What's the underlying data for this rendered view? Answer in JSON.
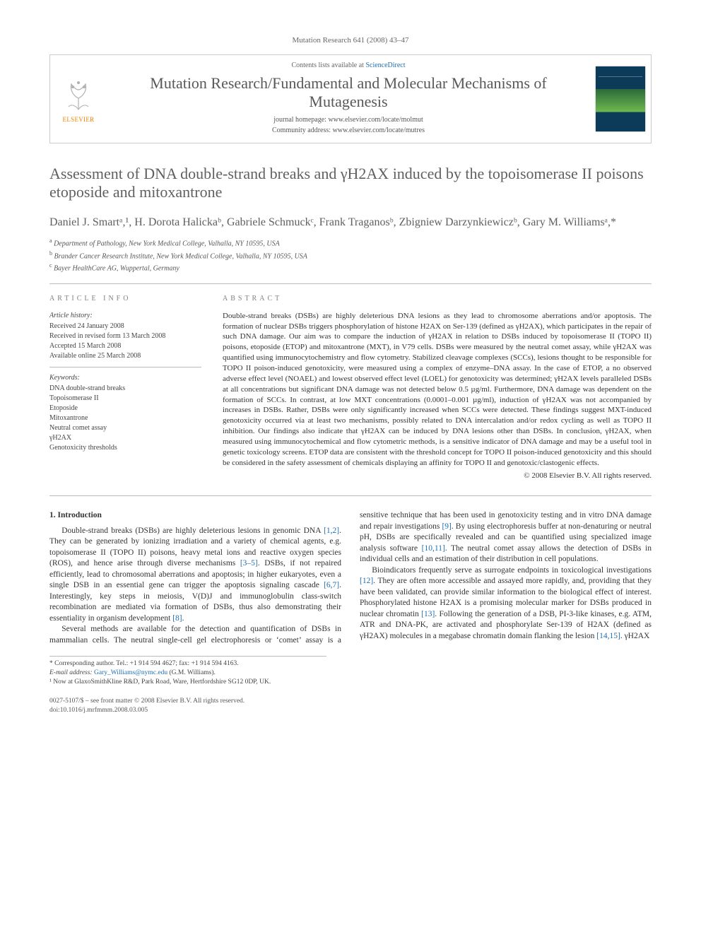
{
  "top_bar": "Mutation Research 641 (2008) 43–47",
  "header": {
    "contents_prefix": "Contents lists available at ",
    "contents_link": "ScienceDirect",
    "journal_title": "Mutation Research/Fundamental and Molecular Mechanisms of Mutagenesis",
    "homepage_label": "journal homepage: ",
    "homepage_url": "www.elsevier.com/locate/molmut",
    "community_label": "Community address: ",
    "community_url": "www.elsevier.com/locate/mutres",
    "elsevier": "ELSEVIER"
  },
  "title": "Assessment of DNA double-strand breaks and γH2AX induced by the topoisomerase II poisons etoposide and mitoxantrone",
  "authors": "Daniel J. Smartᵃ,¹, H. Dorota Halickaᵇ, Gabriele Schmuckᶜ, Frank Traganosᵇ, Zbigniew Darzynkiewiczᵇ, Gary M. Williamsᵃ,*",
  "affiliations": {
    "a": "Department of Pathology, New York Medical College, Valhalla, NY 10595, USA",
    "b": "Brander Cancer Research Institute, New York Medical College, Valhalla, NY 10595, USA",
    "c": "Bayer HealthCare AG, Wuppertal, Germany"
  },
  "info": {
    "head": "ARTICLE INFO",
    "history_label": "Article history:",
    "received": "Received 24 January 2008",
    "revised": "Received in revised form 13 March 2008",
    "accepted": "Accepted 15 March 2008",
    "online": "Available online 25 March 2008",
    "keywords_label": "Keywords:",
    "keywords": [
      "DNA double-strand breaks",
      "Topoisomerase II",
      "Etoposide",
      "Mitoxantrone",
      "Neutral comet assay",
      "γH2AX",
      "Genotoxicity thresholds"
    ]
  },
  "abstract": {
    "head": "ABSTRACT",
    "text": "Double-strand breaks (DSBs) are highly deleterious DNA lesions as they lead to chromosome aberrations and/or apoptosis. The formation of nuclear DSBs triggers phosphorylation of histone H2AX on Ser-139 (defined as γH2AX), which participates in the repair of such DNA damage. Our aim was to compare the induction of γH2AX in relation to DSBs induced by topoisomerase II (TOPO II) poisons, etoposide (ETOP) and mitoxantrone (MXT), in V79 cells. DSBs were measured by the neutral comet assay, while γH2AX was quantified using immunocytochemistry and flow cytometry. Stabilized cleavage complexes (SCCs), lesions thought to be responsible for TOPO II poison-induced genotoxicity, were measured using a complex of enzyme–DNA assay. In the case of ETOP, a no observed adverse effect level (NOAEL) and lowest observed effect level (LOEL) for genotoxicity was determined; γH2AX levels paralleled DSBs at all concentrations but significant DNA damage was not detected below 0.5 µg/ml. Furthermore, DNA damage was dependent on the formation of SCCs. In contrast, at low MXT concentrations (0.0001–0.001 µg/ml), induction of γH2AX was not accompanied by increases in DSBs. Rather, DSBs were only significantly increased when SCCs were detected. These findings suggest MXT-induced genotoxicity occurred via at least two mechanisms, possibly related to DNA intercalation and/or redox cycling as well as TOPO II inhibition. Our findings also indicate that γH2AX can be induced by DNA lesions other than DSBs. In conclusion, γH2AX, when measured using immunocytochemical and flow cytometric methods, is a sensitive indicator of DNA damage and may be a useful tool in genetic toxicology screens. ETOP data are consistent with the threshold concept for TOPO II poison-induced genotoxicity and this should be considered in the safety assessment of chemicals displaying an affinity for TOPO II and genotoxic/clastogenic effects.",
    "copyright": "© 2008 Elsevier B.V. All rights reserved."
  },
  "body": {
    "section_number": "1.",
    "section_title": "Introduction",
    "p1": "Double-strand breaks (DSBs) are highly deleterious lesions in genomic DNA [1,2]. They can be generated by ionizing irradiation and a variety of chemical agents, e.g. topoisomerase II (TOPO II) poisons, heavy metal ions and reactive oxygen species (ROS), and hence arise through diverse mechanisms [3–5]. DSBs, if not repaired efficiently, lead to chromosomal aberrations and apoptosis; in higher eukaryotes, even a single DSB in an essential gene can trigger the apoptosis signaling cascade [6,7]. Interestingly, key steps in meiosis, V(D)J and immunoglobulin class-switch recombination are mediated via formation of DSBs, thus also demonstrating their essentiality in organism development [8].",
    "p2": "Several methods are available for the detection and quantification of DSBs in mammalian cells. The neutral single-cell gel electrophoresis or ‘comet’ assay is a sensitive technique that has been used in genotoxicity testing and in vitro DNA damage and repair investigations [9]. By using electrophoresis buffer at non-denaturing or neutral pH, DSBs are specifically revealed and can be quantified using specialized image analysis software [10,11]. The neutral comet assay allows the detection of DSBs in individual cells and an estimation of their distribution in cell populations.",
    "p3": "Bioindicators frequently serve as surrogate endpoints in toxicological investigations [12]. They are often more accessible and assayed more rapidly, and, providing that they have been validated, can provide similar information to the biological effect of interest. Phosphorylated histone H2AX is a promising molecular marker for DSBs produced in nuclear chromatin [13]. Following the generation of a DSB, PI-3-like kinases, e.g. ATM, ATR and DNA-PK, are activated and phosphorylate Ser-139 of H2AX (defined as γH2AX) molecules in a megabase chromatin domain flanking the lesion [14,15]. γH2AX"
  },
  "footnotes": {
    "corresponding": "* Corresponding author. Tel.: +1 914 594 4627; fax: +1 914 594 4163.",
    "email_label": "E-mail address:",
    "email": "Gary_Williams@nymc.edu",
    "email_suffix": "(G.M. Williams).",
    "note1": "¹ Now at GlaxoSmithKline R&D, Park Road, Ware, Hertfordshire SG12 0DP, UK."
  },
  "footer": {
    "line1": "0027-5107/$ – see front matter © 2008 Elsevier B.V. All rights reserved.",
    "line2": "doi:10.1016/j.mrfmmm.2008.03.005"
  },
  "colors": {
    "link": "#1f6fb2",
    "elsevier_orange": "#ef8200",
    "heading_gray": "#606060",
    "rule_gray": "#bbbbbb"
  }
}
